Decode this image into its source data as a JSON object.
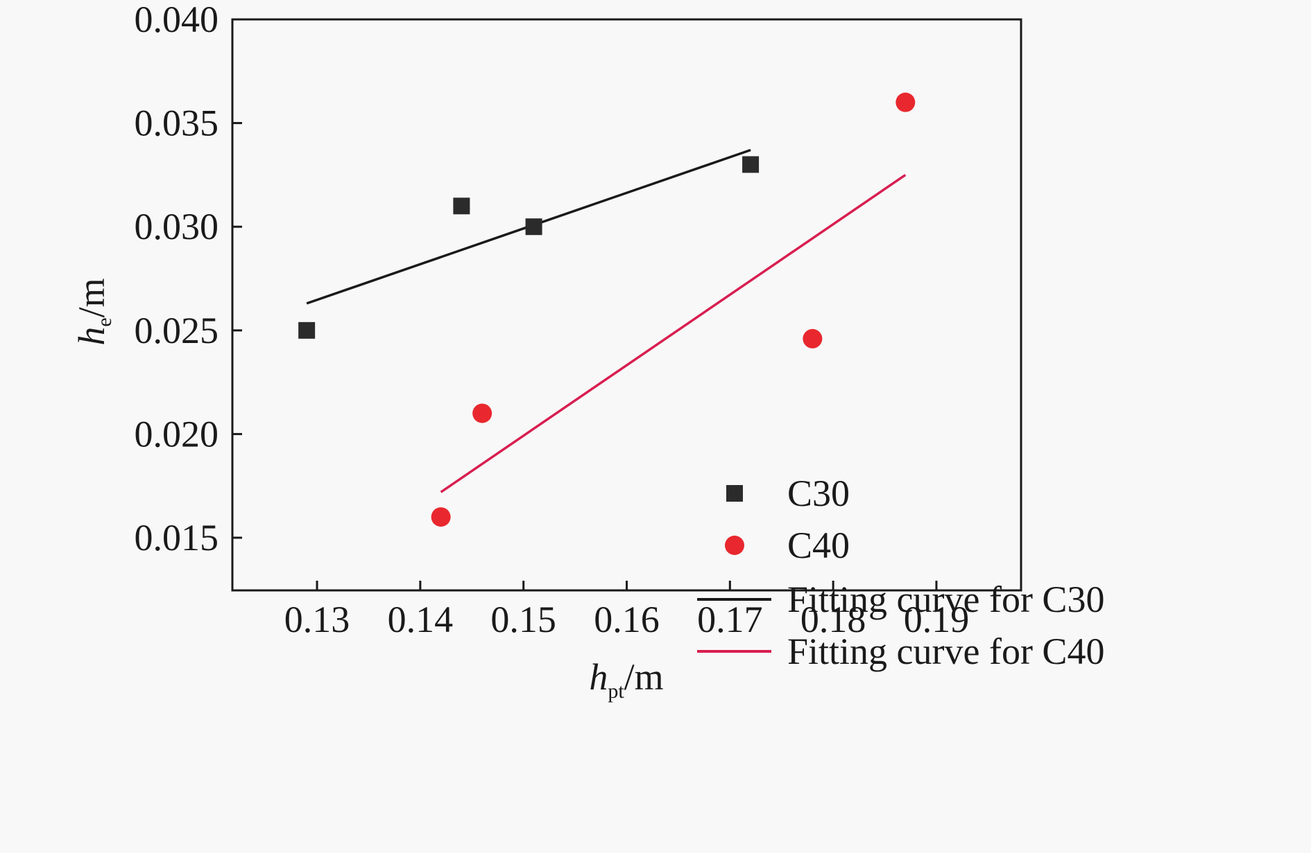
{
  "chart_data": {
    "type": "scatter",
    "title": "",
    "xlabel": {
      "main": "h",
      "sub": "pt",
      "unit": "/m"
    },
    "ylabel": {
      "main": "h",
      "sub": "e",
      "unit": "/m"
    },
    "xlim": [
      0.1218,
      0.1982
    ],
    "ylim": [
      0.01246,
      0.04
    ],
    "xticks": [
      0.13,
      0.14,
      0.15,
      0.16,
      0.17,
      0.18,
      0.19
    ],
    "xtick_labels": [
      "0.13",
      "0.14",
      "0.15",
      "0.16",
      "0.17",
      "0.18",
      "0.19"
    ],
    "yticks": [
      0.015,
      0.02,
      0.025,
      0.03,
      0.035,
      0.04
    ],
    "ytick_labels": [
      "0.015",
      "0.020",
      "0.025",
      "0.030",
      "0.035",
      "0.040"
    ],
    "grid": false,
    "legend_position": "bottom-right",
    "series": [
      {
        "name": "C30",
        "kind": "scatter",
        "marker": "square",
        "color": "#2b2b2b",
        "x": [
          0.129,
          0.144,
          0.151,
          0.172
        ],
        "y": [
          0.025,
          0.031,
          0.03,
          0.033
        ]
      },
      {
        "name": "C40",
        "kind": "scatter",
        "marker": "circle",
        "color": "#e8282e",
        "x": [
          0.142,
          0.146,
          0.178,
          0.187
        ],
        "y": [
          0.016,
          0.021,
          0.0246,
          0.036
        ]
      },
      {
        "name": "Fitting curve for C30",
        "kind": "line",
        "color": "#1a1a1a",
        "x": [
          0.129,
          0.172
        ],
        "y": [
          0.0263,
          0.0337
        ]
      },
      {
        "name": "Fitting curve for C40",
        "kind": "line",
        "color": "#d81e50",
        "x": [
          0.142,
          0.187
        ],
        "y": [
          0.0172,
          0.0325
        ]
      }
    ]
  }
}
